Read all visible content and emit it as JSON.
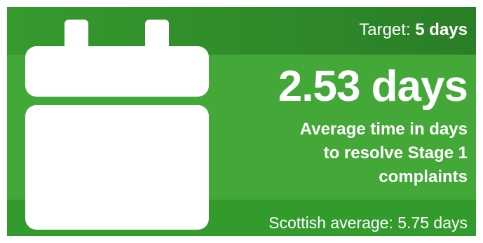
{
  "target": {
    "label": "Target:",
    "value": "5 days"
  },
  "headline": "2.53 days",
  "description_lines": [
    "Average time in days",
    "to resolve Stage 1",
    "complaints"
  ],
  "scottish_average": "Scottish average: 5.75 days",
  "icon": "calendar-icon",
  "colors": {
    "background": "#43a837",
    "top_band": "#2f8b2a",
    "bottom_band": "#339a2c",
    "text": "#ffffff"
  }
}
